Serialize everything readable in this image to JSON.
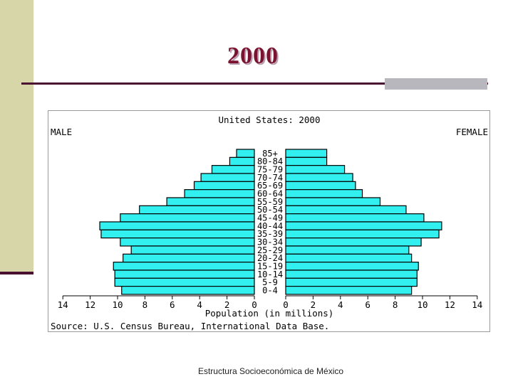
{
  "slide": {
    "title": "2000",
    "footer": "Estructura Socioeconómica de México"
  },
  "colors": {
    "bar_fill": "#33f0f0",
    "bar_stroke": "#000000",
    "title_color": "#7a1230",
    "accent_dark": "#4a1030",
    "sidebar": "#d6d6a8"
  },
  "chart_data": {
    "type": "bar",
    "orientation": "horizontal-population-pyramid",
    "title": "United States: 2000",
    "left_label": "MALE",
    "right_label": "FEMALE",
    "xlabel": "Population (in millions)",
    "source": "Source: U.S. Census Bureau, International Data Base.",
    "xlim": [
      0,
      14
    ],
    "x_ticks": [
      14,
      12,
      10,
      8,
      6,
      4,
      2,
      0
    ],
    "x_ticks_right": [
      0,
      2,
      4,
      6,
      8,
      10,
      12,
      14
    ],
    "categories": [
      "85+",
      "80-84",
      "75-79",
      "70-74",
      "65-69",
      "60-64",
      "55-59",
      "50-54",
      "45-49",
      "40-44",
      "35-39",
      "30-34",
      "25-29",
      "20-24",
      "15-19",
      "10-14",
      "5-9",
      "0-4"
    ],
    "series": [
      {
        "name": "MALE",
        "values": [
          1.3,
          1.8,
          3.1,
          3.9,
          4.4,
          5.1,
          6.4,
          8.4,
          9.8,
          11.3,
          11.2,
          9.8,
          9.0,
          9.6,
          10.3,
          10.2,
          10.2,
          9.7
        ]
      },
      {
        "name": "FEMALE",
        "values": [
          3.0,
          3.0,
          4.3,
          4.9,
          5.1,
          5.6,
          6.9,
          8.8,
          10.1,
          11.4,
          11.2,
          9.9,
          9.0,
          9.2,
          9.7,
          9.6,
          9.6,
          9.2
        ]
      }
    ],
    "grid": false,
    "legend": "none"
  }
}
